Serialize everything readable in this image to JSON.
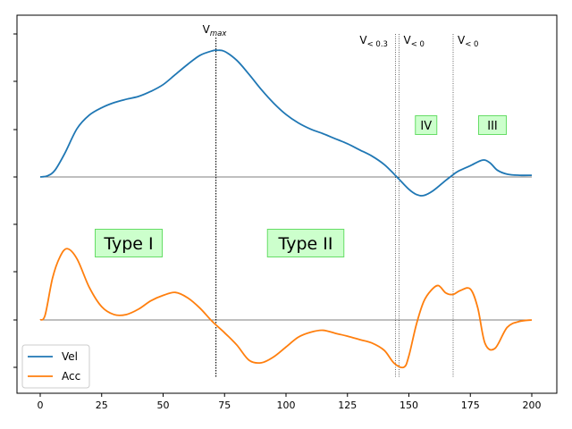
{
  "chart_data": {
    "type": "line",
    "title": "",
    "xlabel": "",
    "ylabel": "",
    "xlim": [
      -10,
      210
    ],
    "xticks": [
      0,
      25,
      50,
      75,
      100,
      125,
      150,
      175,
      200
    ],
    "xtick_labels": [
      "0",
      "25",
      "50",
      "75",
      "100",
      "125",
      "150",
      "175",
      "200"
    ],
    "legend": {
      "placement": "lower-left",
      "entries": [
        "Vel",
        "Acc"
      ]
    },
    "series": [
      {
        "name": "Vel",
        "color": "#1f77b4",
        "x": [
          0,
          3,
          6,
          10,
          15,
          20,
          25,
          30,
          35,
          40,
          45,
          50,
          55,
          60,
          65,
          70,
          72,
          75,
          80,
          85,
          90,
          95,
          100,
          105,
          110,
          115,
          120,
          125,
          130,
          135,
          140,
          144,
          146,
          150,
          153,
          156,
          160,
          165,
          168,
          170,
          175,
          180,
          183,
          186,
          190,
          195,
          200
        ],
        "y": [
          0.0,
          0.02,
          0.12,
          0.42,
          0.86,
          1.1,
          1.23,
          1.32,
          1.38,
          1.43,
          1.52,
          1.64,
          1.82,
          2.0,
          2.16,
          2.24,
          2.25,
          2.23,
          2.07,
          1.82,
          1.55,
          1.31,
          1.11,
          0.96,
          0.85,
          0.77,
          0.68,
          0.59,
          0.48,
          0.37,
          0.22,
          0.05,
          -0.04,
          -0.22,
          -0.31,
          -0.33,
          -0.24,
          -0.06,
          0.04,
          0.1,
          0.2,
          0.3,
          0.25,
          0.12,
          0.05,
          0.03,
          0.03
        ]
      },
      {
        "name": "Acc",
        "color": "#ff7f0e",
        "x": [
          0,
          2,
          5,
          8,
          11,
          15,
          20,
          25,
          30,
          35,
          40,
          45,
          50,
          55,
          60,
          65,
          70,
          75,
          80,
          85,
          90,
          95,
          100,
          105,
          110,
          115,
          120,
          125,
          130,
          135,
          140,
          144,
          148,
          150,
          153,
          156,
          159,
          162,
          165,
          168,
          171,
          175,
          178,
          181,
          185,
          190,
          195,
          200
        ],
        "y": [
          0.0,
          0.1,
          0.85,
          1.28,
          1.45,
          1.24,
          0.66,
          0.27,
          0.11,
          0.11,
          0.22,
          0.39,
          0.5,
          0.56,
          0.45,
          0.24,
          -0.03,
          -0.26,
          -0.51,
          -0.82,
          -0.87,
          -0.75,
          -0.55,
          -0.35,
          -0.25,
          -0.21,
          -0.27,
          -0.33,
          -0.4,
          -0.47,
          -0.62,
          -0.88,
          -0.96,
          -0.73,
          -0.1,
          0.37,
          0.6,
          0.7,
          0.55,
          0.52,
          0.6,
          0.63,
          0.25,
          -0.48,
          -0.58,
          -0.15,
          -0.03,
          0.0
        ]
      }
    ],
    "vertical_markers": [
      {
        "x": 71.5,
        "label": "V",
        "sub": "max",
        "style": "dotted"
      },
      {
        "x": 144.5,
        "label": "V",
        "sub": "< 0.3",
        "style": "thin-dotted"
      },
      {
        "x": 146,
        "label": "V",
        "sub": "< 0",
        "style": "thin-dotted"
      },
      {
        "x": 168,
        "label": "V",
        "sub": "< 0",
        "style": "thin-dotted"
      }
    ],
    "regions": [
      {
        "label": "Type I",
        "x": 36,
        "panel": "acc"
      },
      {
        "label": "Type II",
        "x": 108,
        "panel": "acc"
      },
      {
        "label": "IV",
        "x": 157,
        "panel": "vel"
      },
      {
        "label": "III",
        "x": 184,
        "panel": "vel"
      }
    ]
  }
}
